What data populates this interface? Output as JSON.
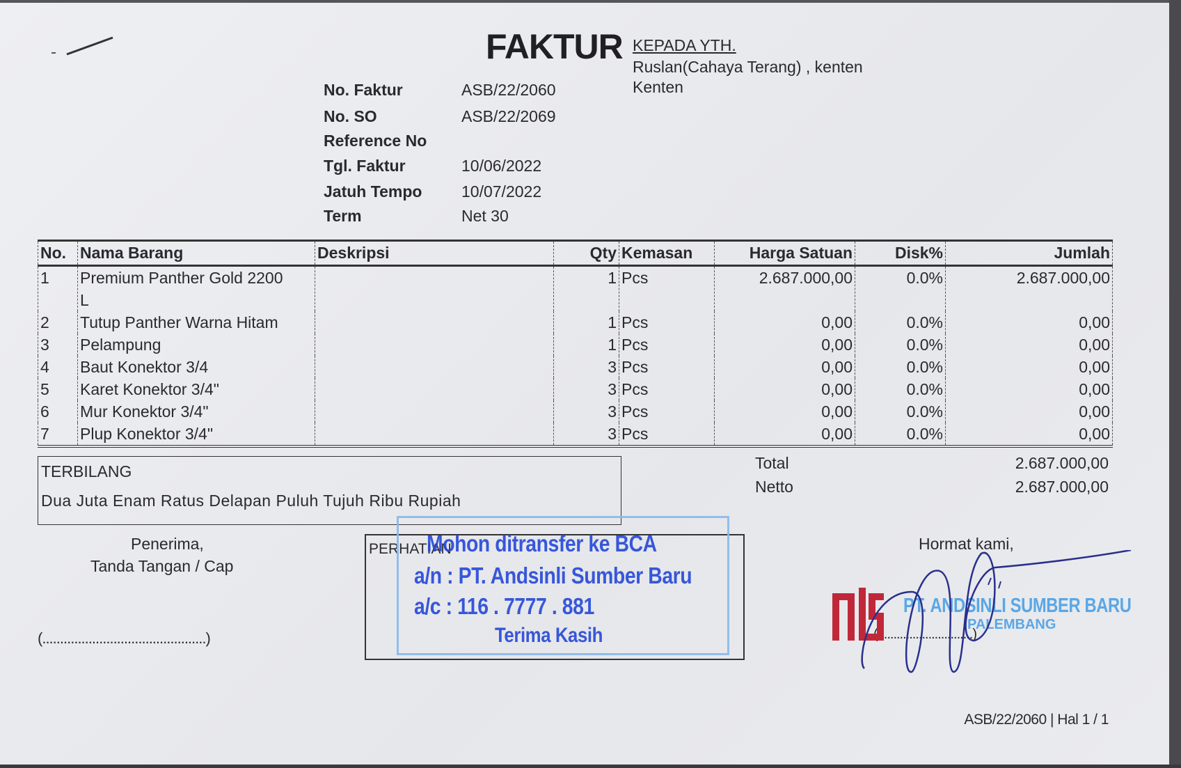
{
  "document": {
    "title": "FAKTUR",
    "recipient": {
      "heading": "KEPADA YTH.",
      "line1": "Ruslan(Cahaya Terang) , kenten",
      "line2": "Kenten"
    },
    "meta": [
      {
        "label": "No. Faktur",
        "value": "ASB/22/2060"
      },
      {
        "label": "No. SO",
        "value": "ASB/22/2069"
      },
      {
        "label": "Reference No",
        "value": ""
      },
      {
        "label": "Tgl. Faktur",
        "value": "10/06/2022"
      },
      {
        "label": "Jatuh Tempo",
        "value": "10/07/2022"
      },
      {
        "label": "Term",
        "value": "Net 30"
      }
    ]
  },
  "table": {
    "headers": [
      "No.",
      "Nama Barang",
      "Deskripsi",
      "Qty",
      "Kemasan",
      "Harga Satuan",
      "Disk%",
      "Jumlah"
    ],
    "rows": [
      {
        "no": "1",
        "name": "Premium Panther Gold 2200",
        "name2": "L",
        "desc": "",
        "qty": "1",
        "unit": "Pcs",
        "price": "2.687.000,00",
        "disc": "0.0%",
        "total": "2.687.000,00"
      },
      {
        "no": "2",
        "name": "Tutup Panther Warna Hitam",
        "desc": "",
        "qty": "1",
        "unit": "Pcs",
        "price": "0,00",
        "disc": "0.0%",
        "total": "0,00"
      },
      {
        "no": "3",
        "name": "Pelampung",
        "desc": "",
        "qty": "1",
        "unit": "Pcs",
        "price": "0,00",
        "disc": "0.0%",
        "total": "0,00"
      },
      {
        "no": "4",
        "name": "Baut Konektor 3/4",
        "desc": "",
        "qty": "3",
        "unit": "Pcs",
        "price": "0,00",
        "disc": "0.0%",
        "total": "0,00"
      },
      {
        "no": "5",
        "name": "Karet Konektor 3/4\"",
        "desc": "",
        "qty": "3",
        "unit": "Pcs",
        "price": "0,00",
        "disc": "0.0%",
        "total": "0,00"
      },
      {
        "no": "6",
        "name": "Mur Konektor 3/4\"",
        "desc": "",
        "qty": "3",
        "unit": "Pcs",
        "price": "0,00",
        "disc": "0.0%",
        "total": "0,00"
      },
      {
        "no": "7",
        "name": "Plup Konektor 3/4\"",
        "desc": "",
        "qty": "3",
        "unit": "Pcs",
        "price": "0,00",
        "disc": "0.0%",
        "total": "0,00"
      }
    ]
  },
  "summary": {
    "total_label": "Total",
    "total_value": "2.687.000,00",
    "netto_label": "Netto",
    "netto_value": "2.687.000,00"
  },
  "terbilang": {
    "label": "TERBILANG",
    "text": "Dua Juta Enam Ratus Delapan Puluh Tujuh Ribu Rupiah"
  },
  "receiver": {
    "line1": "Penerima,",
    "line2": "Tanda Tangan / Cap",
    "sign_line": "(..............................................)"
  },
  "notice": {
    "label": "PERHATIAN",
    "stamp": {
      "line1": "Mohon ditransfer ke BCA",
      "line2": "a/n : PT. Andsinli Sumber Baru",
      "line3": "a/c : 116 . 7777 . 881",
      "line4": "Terima Kasih",
      "color": "#2548d8"
    }
  },
  "sender": {
    "greeting": "Hormat kami,",
    "sign_line": "(..............................)",
    "company_stamp": {
      "logo": "ALS",
      "name": "PT. ANDSINLI SUMBER BARU",
      "city": "PALEMBANG",
      "logo_color": "#c0283a",
      "text_color": "#5aa7e6"
    }
  },
  "footer": {
    "page_info": "ASB/22/2060 | Hal 1 / 1"
  }
}
